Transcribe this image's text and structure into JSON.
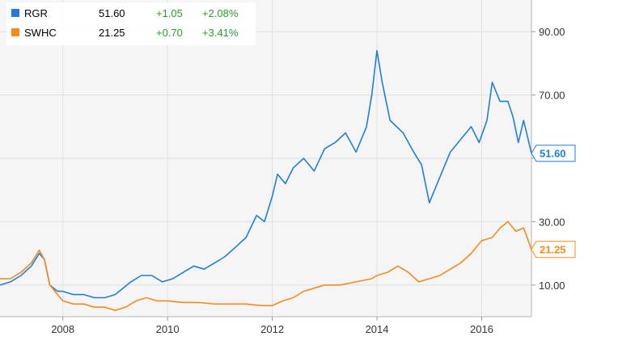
{
  "chart_data": {
    "type": "line",
    "x_type": "year",
    "xlim": [
      2006.8,
      2016.95
    ],
    "ylim": [
      0,
      100
    ],
    "y_axis_side": "right",
    "grid": {
      "horizontal": true,
      "vertical": true
    },
    "legend_position": "top-left",
    "x_ticks": [
      {
        "value": 2008,
        "label": "2008"
      },
      {
        "value": 2010,
        "label": "2010"
      },
      {
        "value": 2012,
        "label": "2012"
      },
      {
        "value": 2014,
        "label": "2014"
      },
      {
        "value": 2016,
        "label": "2016"
      }
    ],
    "y_ticks": [
      {
        "value": 10,
        "label": "10.00"
      },
      {
        "value": 30,
        "label": "30.00"
      },
      {
        "value": 50,
        "label": ""
      },
      {
        "value": 70,
        "label": "70.00"
      },
      {
        "value": 90,
        "label": "90.00"
      }
    ],
    "series": [
      {
        "name": "RGR",
        "color": "#1f7fd8",
        "last": "51.60",
        "last_value": 51.6,
        "change": "+1.05",
        "change_pct": "+2.08%",
        "x": [
          2006.8,
          2007.0,
          2007.2,
          2007.4,
          2007.55,
          2007.65,
          2007.75,
          2007.9,
          2008.0,
          2008.2,
          2008.4,
          2008.6,
          2008.8,
          2009.0,
          2009.15,
          2009.3,
          2009.5,
          2009.7,
          2009.9,
          2010.1,
          2010.3,
          2010.5,
          2010.7,
          2010.9,
          2011.1,
          2011.3,
          2011.5,
          2011.7,
          2011.85,
          2012.0,
          2012.1,
          2012.25,
          2012.4,
          2012.6,
          2012.8,
          2013.0,
          2013.2,
          2013.4,
          2013.6,
          2013.8,
          2013.9,
          2014.0,
          2014.1,
          2014.25,
          2014.5,
          2014.7,
          2014.85,
          2015.0,
          2015.2,
          2015.4,
          2015.6,
          2015.8,
          2015.95,
          2016.1,
          2016.2,
          2016.35,
          2016.5,
          2016.6,
          2016.7,
          2016.8,
          2016.95
        ],
        "y": [
          10,
          11,
          13,
          16,
          20,
          18,
          10,
          8,
          8,
          7,
          7,
          6,
          6,
          7,
          9,
          11,
          13,
          13,
          11,
          12,
          14,
          16,
          15,
          17,
          19,
          22,
          25,
          32,
          30,
          38,
          45,
          42,
          47,
          50,
          46,
          53,
          55,
          58,
          52,
          60,
          70,
          84,
          74,
          62,
          58,
          52,
          48,
          36,
          44,
          52,
          56,
          60,
          55,
          62,
          74,
          68,
          68,
          63,
          55,
          62,
          51.6
        ]
      },
      {
        "name": "SWHC",
        "color": "#f58a1f",
        "last": "21.25",
        "last_value": 21.25,
        "change": "+0.70",
        "change_pct": "+3.41%",
        "x": [
          2006.8,
          2007.0,
          2007.2,
          2007.4,
          2007.55,
          2007.65,
          2007.75,
          2007.9,
          2008.0,
          2008.2,
          2008.4,
          2008.6,
          2008.8,
          2009.0,
          2009.2,
          2009.4,
          2009.6,
          2009.8,
          2010.0,
          2010.3,
          2010.6,
          2010.9,
          2011.2,
          2011.5,
          2011.8,
          2012.0,
          2012.2,
          2012.4,
          2012.6,
          2012.8,
          2013.0,
          2013.3,
          2013.6,
          2013.9,
          2014.0,
          2014.2,
          2014.4,
          2014.6,
          2014.8,
          2015.0,
          2015.2,
          2015.4,
          2015.6,
          2015.8,
          2016.0,
          2016.2,
          2016.35,
          2016.5,
          2016.65,
          2016.8,
          2016.95
        ],
        "y": [
          12,
          12,
          14,
          17,
          21,
          18,
          10,
          7,
          5,
          4,
          4,
          3,
          3,
          2,
          3,
          5,
          6,
          5,
          5,
          4.5,
          4.5,
          4,
          4,
          4,
          3.5,
          3.5,
          5,
          6,
          8,
          9,
          10,
          10,
          11,
          12,
          13,
          14,
          16,
          14,
          11,
          12,
          13,
          15,
          17,
          20,
          24,
          25,
          28,
          30,
          27,
          28,
          21.25
        ]
      }
    ]
  }
}
